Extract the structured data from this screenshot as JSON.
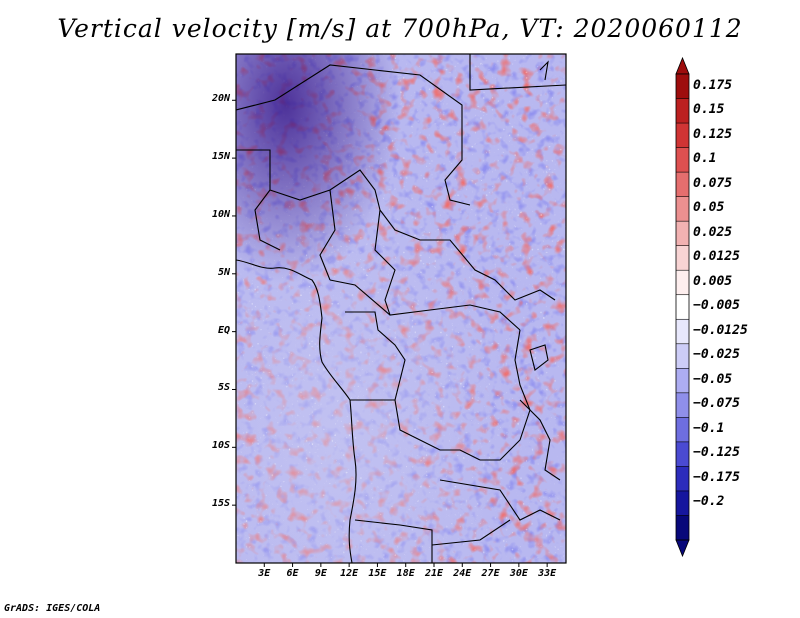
{
  "title": "Vertical velocity [m/s] at 700hPa, VT: 2020060112",
  "credit": "GrADS: IGES/COLA",
  "map": {
    "projection": "lat-lon",
    "lon_range": [
      0,
      35
    ],
    "lat_range": [
      -20,
      24
    ],
    "lat_labels": [
      "20N",
      "15N",
      "10N",
      "5N",
      "EQ",
      "5S",
      "10S",
      "15S"
    ],
    "lat_values": [
      20,
      15,
      10,
      5,
      0,
      -5,
      -10,
      -15
    ],
    "lon_labels": [
      "3E",
      "6E",
      "9E",
      "12E",
      "15E",
      "18E",
      "21E",
      "24E",
      "27E",
      "30E",
      "33E"
    ],
    "lon_values": [
      3,
      6,
      9,
      12,
      15,
      18,
      21,
      24,
      27,
      30,
      33
    ]
  },
  "colorbar": {
    "labels": [
      "0.175",
      "0.15",
      "0.125",
      "0.1",
      "0.075",
      "0.05",
      "0.025",
      "0.0125",
      "0.005",
      "−0.005",
      "−0.0125",
      "−0.025",
      "−0.05",
      "−0.075",
      "−0.1",
      "−0.125",
      "−0.175",
      "−0.2"
    ],
    "colors": [
      "#9e0d0d",
      "#bc2020",
      "#d03434",
      "#de5050",
      "#e56e6e",
      "#ec9090",
      "#f2b2b2",
      "#f8d4d4",
      "#fdeeee",
      "#ffffff",
      "#e8e8fc",
      "#cdcdf7",
      "#adadf2",
      "#8f8fea",
      "#6e6ee0",
      "#4a4ad2",
      "#2c2cbc",
      "#16169e",
      "#08087a"
    ],
    "top_arrow_color": "#9e0d0d",
    "bottom_arrow_color": "#08087a"
  }
}
